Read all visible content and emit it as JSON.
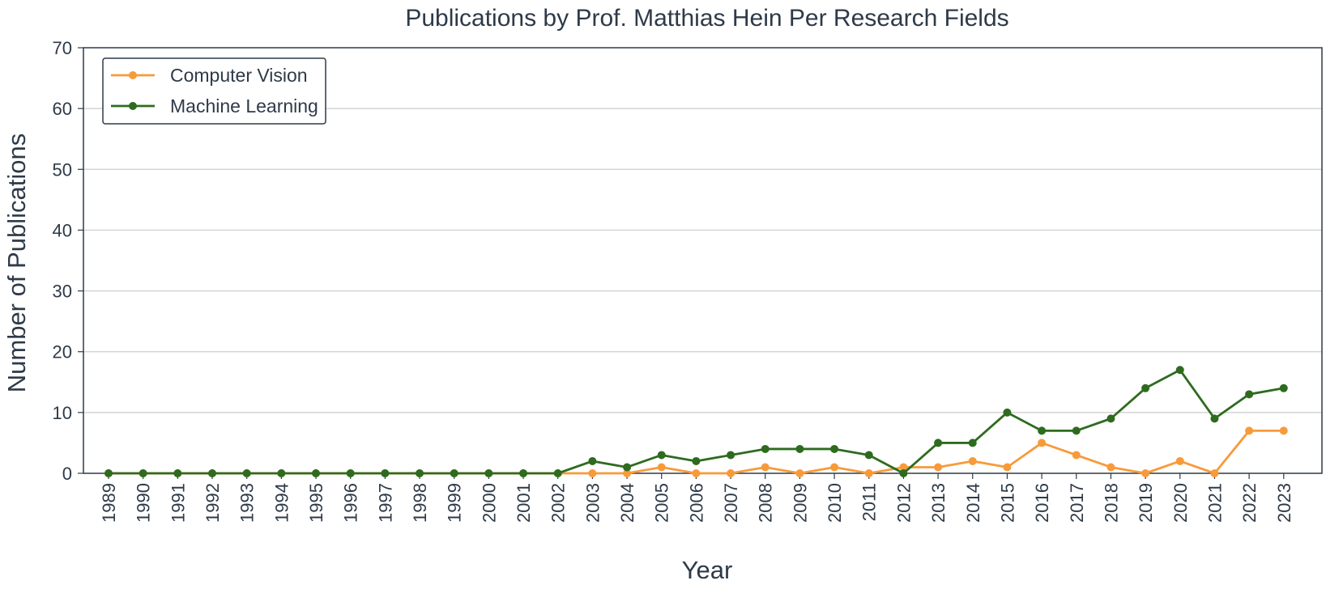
{
  "chart_data": {
    "type": "line",
    "title": "Publications by Prof. Matthias Hein Per Research Fields",
    "xlabel": "Year",
    "ylabel": "Number of Publications",
    "ylim": [
      0,
      70
    ],
    "yticks": [
      0,
      10,
      20,
      30,
      40,
      50,
      60,
      70
    ],
    "grid": "horizontal",
    "legend_position": "top-left",
    "x": [
      "1989",
      "1990",
      "1991",
      "1992",
      "1993",
      "1994",
      "1995",
      "1996",
      "1997",
      "1998",
      "1999",
      "2000",
      "2001",
      "2002",
      "2003",
      "2004",
      "2005",
      "2006",
      "2007",
      "2008",
      "2009",
      "2010",
      "2011",
      "2012",
      "2013",
      "2014",
      "2015",
      "2016",
      "2017",
      "2018",
      "2019",
      "2020",
      "2021",
      "2022",
      "2023"
    ],
    "series": [
      {
        "name": "Computer Vision",
        "color": "#f89a3a",
        "values": [
          0,
          0,
          0,
          0,
          0,
          0,
          0,
          0,
          0,
          0,
          0,
          0,
          0,
          0,
          0,
          0,
          1,
          0,
          0,
          1,
          0,
          1,
          0,
          1,
          1,
          2,
          1,
          5,
          3,
          1,
          0,
          2,
          0,
          7,
          7
        ]
      },
      {
        "name": "Machine Learning",
        "color": "#2e6b1f",
        "values": [
          0,
          0,
          0,
          0,
          0,
          0,
          0,
          0,
          0,
          0,
          0,
          0,
          0,
          0,
          2,
          1,
          3,
          2,
          3,
          4,
          4,
          4,
          3,
          0,
          5,
          5,
          10,
          7,
          7,
          9,
          14,
          17,
          9,
          13,
          14
        ]
      }
    ]
  }
}
